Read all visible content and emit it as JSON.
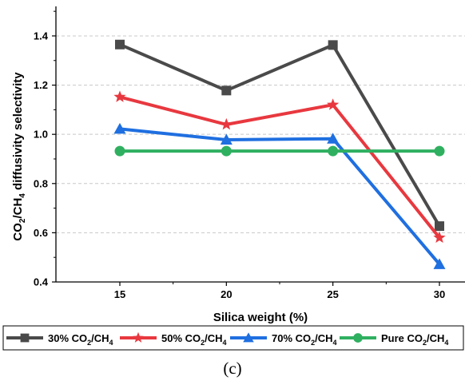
{
  "chart_data": {
    "type": "line",
    "x": [
      15,
      20,
      25,
      30
    ],
    "xlabel": "Silica weight (%)",
    "ylabel_main": "CO",
    "ylabel_sub1": "2",
    "ylabel_mid": "/CH",
    "ylabel_sub2": "4",
    "ylabel_tail": " diffusivity selectivity",
    "xlim": [
      12,
      31.2
    ],
    "ylim": [
      0.4,
      1.52
    ],
    "yticks": [
      0.4,
      0.6,
      0.8,
      1.0,
      1.2,
      1.4
    ],
    "ytick_labels": [
      "0.4",
      "0.6",
      "0.8",
      "1.0",
      "1.2",
      "1.4"
    ],
    "xticks": [
      15,
      20,
      25,
      30
    ],
    "xtick_labels": [
      "15",
      "20",
      "25",
      "30"
    ],
    "grid": "horizontal dashed",
    "legend_position": "bottom",
    "series": [
      {
        "name_pre": "30% CO",
        "name_sub": "2",
        "name_post": "/CH",
        "name_sub2": "4",
        "marker": "square",
        "color": "#4a4a4a",
        "values": [
          1.365,
          1.178,
          1.363,
          0.627
        ]
      },
      {
        "name_pre": "50% CO",
        "name_sub": "2",
        "name_post": "/CH",
        "name_sub2": "4",
        "marker": "star",
        "color": "#e8383f",
        "values": [
          1.152,
          1.04,
          1.12,
          0.58
        ]
      },
      {
        "name_pre": "70% CO",
        "name_sub": "2",
        "name_post": "/CH",
        "name_sub2": "4",
        "marker": "triangle",
        "color": "#1f6fe0",
        "values": [
          1.022,
          0.978,
          0.982,
          0.472
        ]
      },
      {
        "name_pre": "Pure CO",
        "name_sub": "2",
        "name_post": "/CH",
        "name_sub2": "4",
        "marker": "circle",
        "color": "#2fb060",
        "values": [
          0.932,
          0.932,
          0.932,
          0.932
        ]
      }
    ]
  },
  "caption": "(c)"
}
